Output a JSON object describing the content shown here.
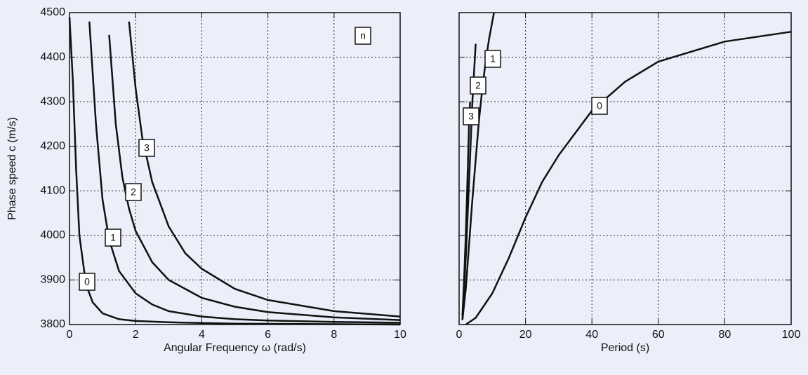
{
  "chart_data": [
    {
      "type": "line",
      "xlabel": "Angular Frequency ω (rad/s)",
      "ylabel": "Phase speed c (m/s)",
      "xlim": [
        0,
        10
      ],
      "ylim": [
        3800,
        4500
      ],
      "xticks": [
        0,
        2,
        4,
        6,
        8,
        10
      ],
      "yticks": [
        3800,
        3900,
        4000,
        4100,
        4200,
        4300,
        4400,
        4500
      ],
      "grid": true,
      "annotations": [
        "n"
      ],
      "series": [
        {
          "name": "0",
          "color": "#111111",
          "x": [
            0,
            0.1,
            0.2,
            0.3,
            0.5,
            0.7,
            1.0,
            1.5,
            2,
            3,
            5,
            10
          ],
          "values": [
            4490,
            4350,
            4150,
            4000,
            3890,
            3850,
            3825,
            3812,
            3808,
            3805,
            3802,
            3800
          ]
        },
        {
          "name": "1",
          "color": "#111111",
          "x": [
            0.6,
            0.8,
            1.0,
            1.2,
            1.5,
            2,
            2.5,
            3,
            4,
            5,
            6,
            8,
            10
          ],
          "values": [
            4480,
            4250,
            4080,
            3990,
            3920,
            3870,
            3845,
            3830,
            3818,
            3812,
            3809,
            3806,
            3804
          ]
        },
        {
          "name": "2",
          "color": "#111111",
          "x": [
            1.2,
            1.4,
            1.6,
            1.8,
            2,
            2.5,
            3,
            4,
            5,
            6,
            8,
            10
          ],
          "values": [
            4450,
            4250,
            4130,
            4060,
            4010,
            3940,
            3900,
            3860,
            3840,
            3828,
            3816,
            3810
          ]
        },
        {
          "name": "3",
          "color": "#111111",
          "x": [
            1.8,
            2,
            2.2,
            2.5,
            3,
            3.5,
            4,
            5,
            6,
            8,
            10
          ],
          "values": [
            4480,
            4330,
            4220,
            4120,
            4020,
            3960,
            3925,
            3880,
            3855,
            3830,
            3818
          ]
        }
      ]
    },
    {
      "type": "line",
      "xlabel": "Period (s)",
      "xlim": [
        0,
        100
      ],
      "ylim": [
        3800,
        4500
      ],
      "xticks": [
        0,
        20,
        40,
        60,
        80,
        100
      ],
      "yticks": [
        3800,
        3900,
        4000,
        4100,
        4200,
        4300,
        4400,
        4500
      ],
      "grid": true,
      "series": [
        {
          "name": "0",
          "color": "#111111",
          "x": [
            2,
            5,
            10,
            15,
            20,
            25,
            30,
            40,
            50,
            60,
            80,
            100
          ],
          "values": [
            3800,
            3815,
            3870,
            3950,
            4040,
            4120,
            4180,
            4280,
            4345,
            4390,
            4435,
            4457
          ]
        },
        {
          "name": "1",
          "color": "#111111",
          "x": [
            1,
            2,
            3,
            4,
            5,
            6,
            7,
            8,
            9,
            10,
            10.5
          ],
          "values": [
            3810,
            3880,
            3980,
            4080,
            4170,
            4260,
            4330,
            4390,
            4440,
            4480,
            4500
          ]
        },
        {
          "name": "2",
          "color": "#111111",
          "x": [
            1,
            2,
            3,
            4,
            5
          ],
          "values": [
            3810,
            3950,
            4120,
            4300,
            4430
          ]
        },
        {
          "name": "3",
          "color": "#111111",
          "x": [
            1,
            1.5,
            2,
            2.5,
            3,
            3.3
          ],
          "values": [
            3820,
            3900,
            4000,
            4120,
            4250,
            4300
          ]
        }
      ]
    }
  ]
}
